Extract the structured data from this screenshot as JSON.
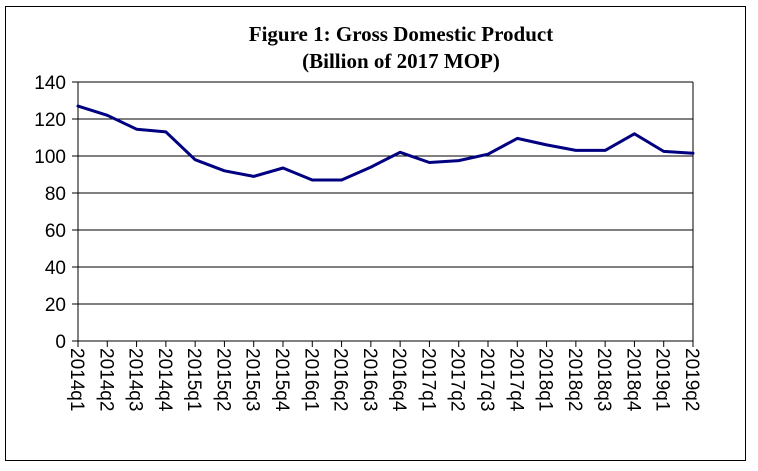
{
  "chart_data": {
    "type": "line",
    "title": "Figure 1: Gross Domestic Product",
    "subtitle": "(Billion of 2017 MOP)",
    "xlabel": "",
    "ylabel": "",
    "ylim": [
      0,
      140
    ],
    "yticks": [
      "0",
      "20",
      "40",
      "60",
      "80",
      "100",
      "120",
      "140"
    ],
    "grid": true,
    "legend": "none",
    "line_color": "#000080",
    "categories": [
      "2014q1",
      "2014q2",
      "2014q3",
      "2014q4",
      "2015q1",
      "2015q2",
      "2015q3",
      "2015q4",
      "2016q1",
      "2016q2",
      "2016q3",
      "2016q4",
      "2017q1",
      "2017q2",
      "2017q3",
      "2017q4",
      "2018q1",
      "2018q2",
      "2018q3",
      "2018q4",
      "2019q1",
      "2019q2"
    ],
    "series": [
      {
        "values": [
          127,
          122,
          114.5,
          113,
          98,
          92,
          89,
          93.5,
          87,
          87,
          94,
          102,
          96.5,
          97.5,
          101,
          109.5,
          106,
          103,
          103,
          112,
          102.5,
          101.5
        ]
      }
    ]
  }
}
